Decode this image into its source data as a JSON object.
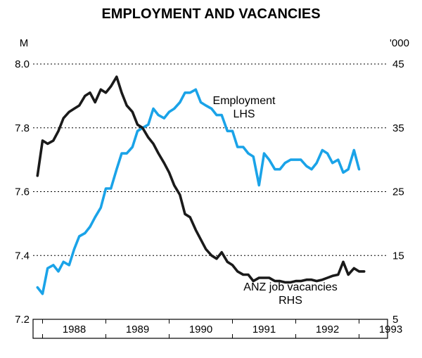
{
  "chart_data": {
    "type": "line",
    "title": "EMPLOYMENT AND VACANCIES",
    "left_axis": {
      "unit": "M",
      "ylim": [
        7.2,
        8.0
      ],
      "ticks": [
        7.2,
        7.4,
        7.6,
        7.8,
        8.0
      ],
      "tick_labels": [
        "7.2",
        "7.4",
        "7.6",
        "7.8",
        "8.0"
      ]
    },
    "right_axis": {
      "unit": "'000",
      "ylim": [
        5,
        45
      ],
      "ticks": [
        5,
        15,
        25,
        35,
        45
      ],
      "tick_labels": [
        "5",
        "15",
        "25",
        "35",
        "45"
      ]
    },
    "x_axis": {
      "labels": [
        "1988",
        "1989",
        "1990",
        "1991",
        "1992",
        "1993"
      ],
      "xlim": [
        1987.85,
        1993.45
      ]
    },
    "grid": "horizontal dotted",
    "series": [
      {
        "name": "Employment LHS",
        "label_lines": [
          "Employment",
          "LHS"
        ],
        "axis": "left",
        "color": "#1aa3e8",
        "x": [
          1987.92,
          1988.0,
          1988.08,
          1988.17,
          1988.25,
          1988.33,
          1988.42,
          1988.5,
          1988.58,
          1988.67,
          1988.75,
          1988.83,
          1988.92,
          1989.0,
          1989.08,
          1989.17,
          1989.25,
          1989.33,
          1989.42,
          1989.5,
          1989.58,
          1989.67,
          1989.75,
          1989.83,
          1989.92,
          1990.0,
          1990.08,
          1990.17,
          1990.25,
          1990.33,
          1990.42,
          1990.5,
          1990.58,
          1990.67,
          1990.75,
          1990.83,
          1990.92,
          1991.0,
          1991.08,
          1991.17,
          1991.25,
          1991.33,
          1991.42,
          1991.5,
          1991.58,
          1991.67,
          1991.75,
          1991.83,
          1991.92,
          1992.0,
          1992.08,
          1992.17,
          1992.25,
          1992.33,
          1992.42,
          1992.5,
          1992.58,
          1992.67,
          1992.75,
          1992.83,
          1992.92,
          1993.0
        ],
        "y": [
          7.3,
          7.28,
          7.36,
          7.37,
          7.35,
          7.38,
          7.37,
          7.42,
          7.46,
          7.47,
          7.49,
          7.52,
          7.55,
          7.61,
          7.61,
          7.67,
          7.72,
          7.72,
          7.74,
          7.79,
          7.8,
          7.81,
          7.86,
          7.84,
          7.83,
          7.85,
          7.86,
          7.88,
          7.91,
          7.91,
          7.92,
          7.88,
          7.87,
          7.86,
          7.84,
          7.84,
          7.79,
          7.79,
          7.74,
          7.74,
          7.72,
          7.71,
          7.62,
          7.72,
          7.7,
          7.67,
          7.67,
          7.69,
          7.7,
          7.7,
          7.7,
          7.68,
          7.67,
          7.69,
          7.73,
          7.72,
          7.69,
          7.7,
          7.66,
          7.67,
          7.73,
          7.67
        ]
      },
      {
        "name": "ANZ job vacancies RHS",
        "label_lines": [
          "ANZ job vacancies",
          "RHS"
        ],
        "axis": "right",
        "color": "#1a1a1a",
        "x": [
          1987.92,
          1988.0,
          1988.08,
          1988.17,
          1988.25,
          1988.33,
          1988.42,
          1988.5,
          1988.58,
          1988.67,
          1988.75,
          1988.83,
          1988.92,
          1989.0,
          1989.08,
          1989.17,
          1989.25,
          1989.33,
          1989.42,
          1989.5,
          1989.58,
          1989.67,
          1989.75,
          1989.83,
          1989.92,
          1990.0,
          1990.08,
          1990.17,
          1990.25,
          1990.33,
          1990.42,
          1990.5,
          1990.58,
          1990.67,
          1990.75,
          1990.83,
          1990.92,
          1991.0,
          1991.08,
          1991.17,
          1991.25,
          1991.33,
          1991.42,
          1991.5,
          1991.58,
          1991.67,
          1991.75,
          1991.83,
          1991.92,
          1992.0,
          1992.08,
          1992.17,
          1992.25,
          1992.33,
          1992.42,
          1992.5,
          1992.58,
          1992.67,
          1992.75,
          1992.83,
          1992.92,
          1993.0,
          1993.08
        ],
        "y": [
          27.5,
          33.0,
          32.5,
          33.0,
          34.5,
          36.5,
          37.5,
          38.0,
          38.5,
          40.0,
          40.5,
          39.0,
          41.0,
          40.5,
          41.5,
          43.0,
          40.5,
          38.5,
          37.5,
          35.5,
          35.0,
          33.5,
          32.5,
          31.0,
          29.5,
          28.0,
          26.0,
          24.5,
          21.5,
          21.0,
          19.0,
          17.5,
          16.0,
          15.0,
          14.5,
          15.5,
          14.0,
          13.5,
          12.5,
          12.0,
          12.0,
          11.0,
          11.5,
          11.5,
          11.5,
          11.0,
          11.0,
          10.8,
          10.8,
          11.0,
          11.0,
          11.2,
          11.2,
          11.0,
          11.2,
          11.5,
          11.8,
          12.0,
          14.0,
          12.0,
          13.0,
          12.5,
          12.5
        ]
      }
    ]
  }
}
